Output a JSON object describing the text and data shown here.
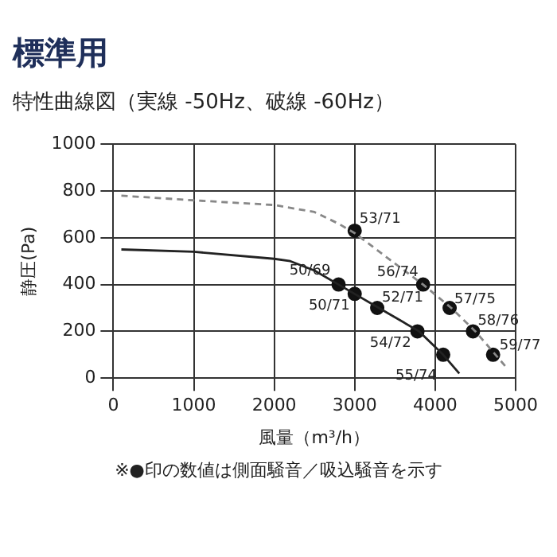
{
  "chart_data": {
    "type": "line",
    "title": "標準用",
    "subtitle": "特性曲線図（実線 -50Hz、破線 -60Hz）",
    "xlabel": "風量（m³/h）",
    "ylabel": "静圧(Pa)",
    "annotations": [
      "※●印の数値は側面騒音／吸込騒音を示す"
    ],
    "xlim": [
      0,
      5000
    ],
    "xticks": [
      0,
      1000,
      2000,
      3000,
      4000,
      5000
    ],
    "ylim": [
      0,
      1000
    ],
    "yticks": [
      0,
      200,
      400,
      600,
      800,
      1000
    ],
    "grid": true,
    "legend": false,
    "series": [
      {
        "type": "line",
        "color": "#222222",
        "line_style": "solid",
        "marker": "none",
        "x": [
          100,
          1000,
          2000,
          2200,
          2500,
          2800,
          3000,
          3300,
          3800,
          4100,
          4300
        ],
        "values": [
          550,
          540,
          510,
          500,
          460,
          400,
          360,
          300,
          200,
          100,
          20
        ]
      },
      {
        "type": "line",
        "color": "#888888",
        "line_style": "dashed",
        "marker": "none",
        "x": [
          100,
          1000,
          2000,
          2500,
          2800,
          3000,
          3500,
          3850,
          4200,
          4500,
          4750,
          4900
        ],
        "values": [
          780,
          760,
          740,
          710,
          660,
          620,
          490,
          400,
          300,
          200,
          100,
          40
        ]
      },
      {
        "type": "scatter",
        "color": "#111111",
        "marker": "circle",
        "x": [
          2800,
          3000,
          3280,
          3780,
          4100
        ],
        "values": [
          400,
          360,
          300,
          200,
          100
        ],
        "value_labels": [
          "50/69",
          "50/71",
          "52/71",
          "54/72",
          "55/74"
        ]
      },
      {
        "type": "scatter",
        "color": "#111111",
        "marker": "circle",
        "x": [
          3000,
          3850,
          4180,
          4470,
          4720
        ],
        "values": [
          630,
          400,
          300,
          200,
          100
        ],
        "value_labels": [
          "53/71",
          "56/74",
          "57/75",
          "58/76",
          "59/77"
        ]
      }
    ]
  }
}
